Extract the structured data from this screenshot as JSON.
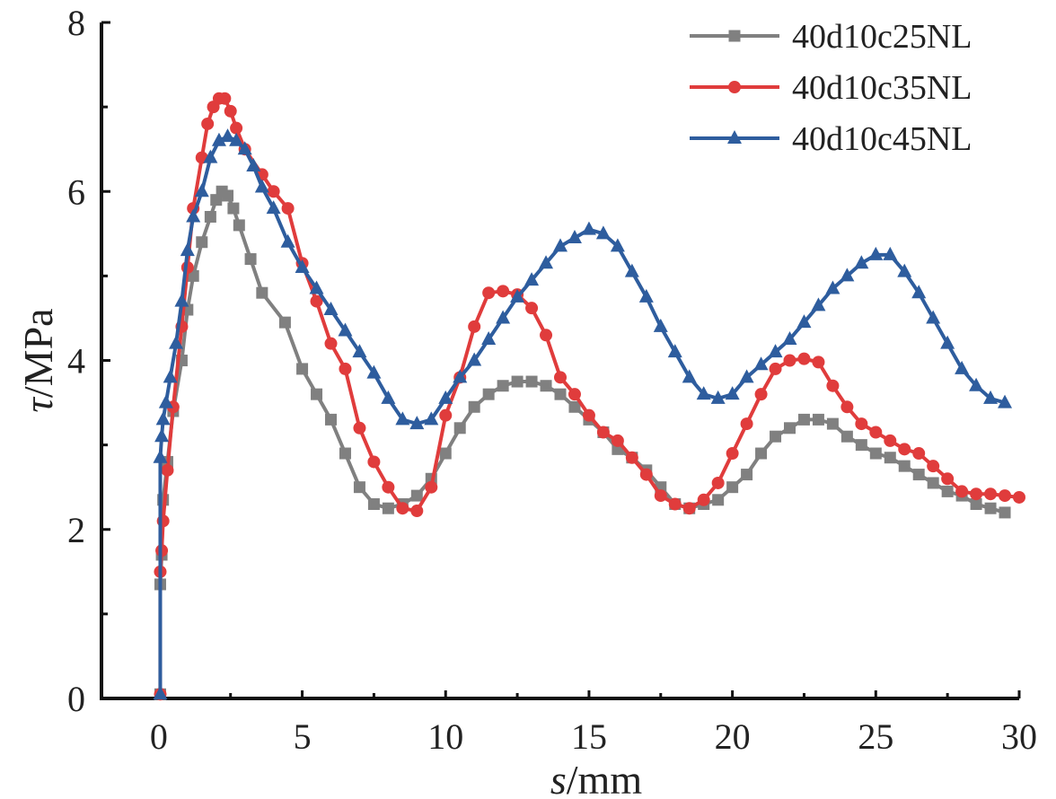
{
  "chart_data": {
    "type": "line",
    "xlabel_var": "s",
    "xlabel_unit": "/mm",
    "ylabel_var": "τ",
    "ylabel_unit": "/MPa",
    "xlim": [
      -2,
      30
    ],
    "ylim": [
      0,
      8
    ],
    "xticks": [
      0,
      5,
      10,
      15,
      20,
      25,
      30
    ],
    "yticks": [
      0,
      2,
      4,
      6,
      8
    ],
    "xtick_labels": [
      "0",
      "5",
      "10",
      "15",
      "20",
      "25",
      "30"
    ],
    "ytick_labels": [
      "0",
      "2",
      "4",
      "6",
      "8"
    ],
    "grid": false,
    "legend_position": "top-right",
    "series": [
      {
        "name": "40d10c25NL",
        "color": "#808080",
        "marker": "square",
        "x": [
          0.05,
          0.05,
          0.1,
          0.15,
          0.3,
          0.5,
          0.8,
          1.0,
          1.2,
          1.5,
          1.8,
          2.0,
          2.2,
          2.4,
          2.6,
          2.8,
          3.2,
          3.6,
          4.4,
          5.0,
          5.5,
          6.0,
          6.5,
          7.0,
          7.5,
          8.0,
          8.5,
          9.0,
          9.5,
          10.0,
          10.5,
          11.0,
          11.5,
          12.0,
          12.5,
          13.0,
          13.5,
          14.0,
          14.5,
          15.0,
          15.5,
          16.0,
          16.5,
          17.0,
          17.5,
          18.0,
          18.5,
          19.0,
          19.5,
          20.0,
          20.5,
          21.0,
          21.5,
          22.0,
          22.5,
          23.0,
          23.5,
          24.0,
          24.5,
          25.0,
          25.5,
          26.0,
          26.5,
          27.0,
          27.5,
          28.0,
          28.5,
          29.0,
          29.5
        ],
        "y": [
          0.05,
          1.35,
          1.7,
          2.35,
          2.8,
          3.4,
          4.0,
          4.6,
          5.0,
          5.4,
          5.7,
          5.9,
          6.0,
          5.95,
          5.8,
          5.6,
          5.2,
          4.8,
          4.45,
          3.9,
          3.6,
          3.3,
          2.9,
          2.5,
          2.3,
          2.25,
          2.3,
          2.4,
          2.6,
          2.9,
          3.2,
          3.45,
          3.6,
          3.7,
          3.75,
          3.75,
          3.7,
          3.6,
          3.45,
          3.3,
          3.15,
          2.95,
          2.85,
          2.7,
          2.5,
          2.3,
          2.25,
          2.3,
          2.35,
          2.5,
          2.65,
          2.9,
          3.1,
          3.2,
          3.3,
          3.3,
          3.25,
          3.1,
          3.0,
          2.9,
          2.85,
          2.75,
          2.65,
          2.55,
          2.45,
          2.4,
          2.3,
          2.25,
          2.2
        ]
      },
      {
        "name": "40d10c35NL",
        "color": "#e03c3c",
        "marker": "circle",
        "x": [
          0.05,
          0.05,
          0.1,
          0.15,
          0.3,
          0.5,
          0.8,
          1.0,
          1.2,
          1.5,
          1.7,
          1.9,
          2.1,
          2.3,
          2.5,
          2.7,
          3.0,
          3.6,
          4.0,
          4.5,
          5.0,
          5.5,
          6.0,
          6.5,
          7.0,
          7.5,
          8.0,
          8.5,
          9.0,
          9.5,
          10.0,
          10.5,
          11.0,
          11.5,
          12.0,
          12.5,
          13.0,
          13.5,
          14.0,
          14.5,
          15.0,
          15.5,
          16.0,
          16.5,
          17.0,
          17.5,
          18.0,
          18.5,
          19.0,
          19.5,
          20.0,
          20.5,
          21.0,
          21.5,
          22.0,
          22.5,
          23.0,
          23.5,
          24.0,
          24.5,
          25.0,
          25.5,
          26.0,
          26.5,
          27.0,
          27.5,
          28.0,
          28.5,
          29.0,
          29.5,
          30.0
        ],
        "y": [
          0.05,
          1.5,
          1.75,
          2.1,
          2.7,
          3.45,
          4.4,
          5.1,
          5.8,
          6.4,
          6.8,
          7.0,
          7.1,
          7.1,
          6.95,
          6.75,
          6.5,
          6.2,
          6.0,
          5.8,
          5.15,
          4.7,
          4.2,
          3.9,
          3.2,
          2.8,
          2.5,
          2.25,
          2.22,
          2.5,
          3.35,
          3.8,
          4.4,
          4.8,
          4.82,
          4.78,
          4.62,
          4.3,
          3.8,
          3.6,
          3.35,
          3.15,
          3.05,
          2.85,
          2.65,
          2.4,
          2.3,
          2.25,
          2.35,
          2.55,
          2.9,
          3.25,
          3.6,
          3.9,
          4.0,
          4.02,
          3.98,
          3.7,
          3.45,
          3.25,
          3.15,
          3.05,
          2.95,
          2.9,
          2.75,
          2.6,
          2.45,
          2.42,
          2.42,
          2.4,
          2.38
        ]
      },
      {
        "name": "40d10c45NL",
        "color": "#2e5d9e",
        "marker": "triangle",
        "x": [
          0.05,
          0.05,
          0.1,
          0.15,
          0.25,
          0.4,
          0.6,
          0.8,
          1.0,
          1.2,
          1.5,
          1.8,
          2.1,
          2.4,
          2.7,
          3.0,
          3.3,
          3.6,
          4.0,
          4.5,
          5.0,
          5.5,
          6.0,
          6.5,
          7.0,
          7.5,
          8.0,
          8.5,
          9.0,
          9.5,
          10.0,
          10.5,
          11.0,
          11.5,
          12.0,
          12.5,
          13.0,
          13.5,
          14.0,
          14.5,
          15.0,
          15.5,
          16.0,
          16.5,
          17.0,
          17.5,
          18.0,
          18.5,
          19.0,
          19.5,
          20.0,
          20.5,
          21.0,
          21.5,
          22.0,
          22.5,
          23.0,
          23.5,
          24.0,
          24.5,
          25.0,
          25.5,
          26.0,
          26.5,
          27.0,
          27.5,
          28.0,
          28.5,
          29.0,
          29.5
        ],
        "y": [
          0.05,
          2.85,
          3.1,
          3.3,
          3.5,
          3.8,
          4.2,
          4.7,
          5.3,
          5.7,
          6.0,
          6.4,
          6.6,
          6.65,
          6.6,
          6.5,
          6.3,
          6.05,
          5.8,
          5.4,
          5.1,
          4.85,
          4.6,
          4.35,
          4.1,
          3.85,
          3.55,
          3.3,
          3.25,
          3.3,
          3.55,
          3.8,
          4.0,
          4.25,
          4.5,
          4.75,
          4.95,
          5.15,
          5.35,
          5.45,
          5.55,
          5.5,
          5.35,
          5.05,
          4.75,
          4.4,
          4.1,
          3.8,
          3.6,
          3.55,
          3.6,
          3.8,
          3.95,
          4.1,
          4.25,
          4.45,
          4.65,
          4.85,
          5.0,
          5.15,
          5.25,
          5.25,
          5.05,
          4.8,
          4.5,
          4.2,
          3.9,
          3.7,
          3.55,
          3.5
        ]
      }
    ]
  }
}
